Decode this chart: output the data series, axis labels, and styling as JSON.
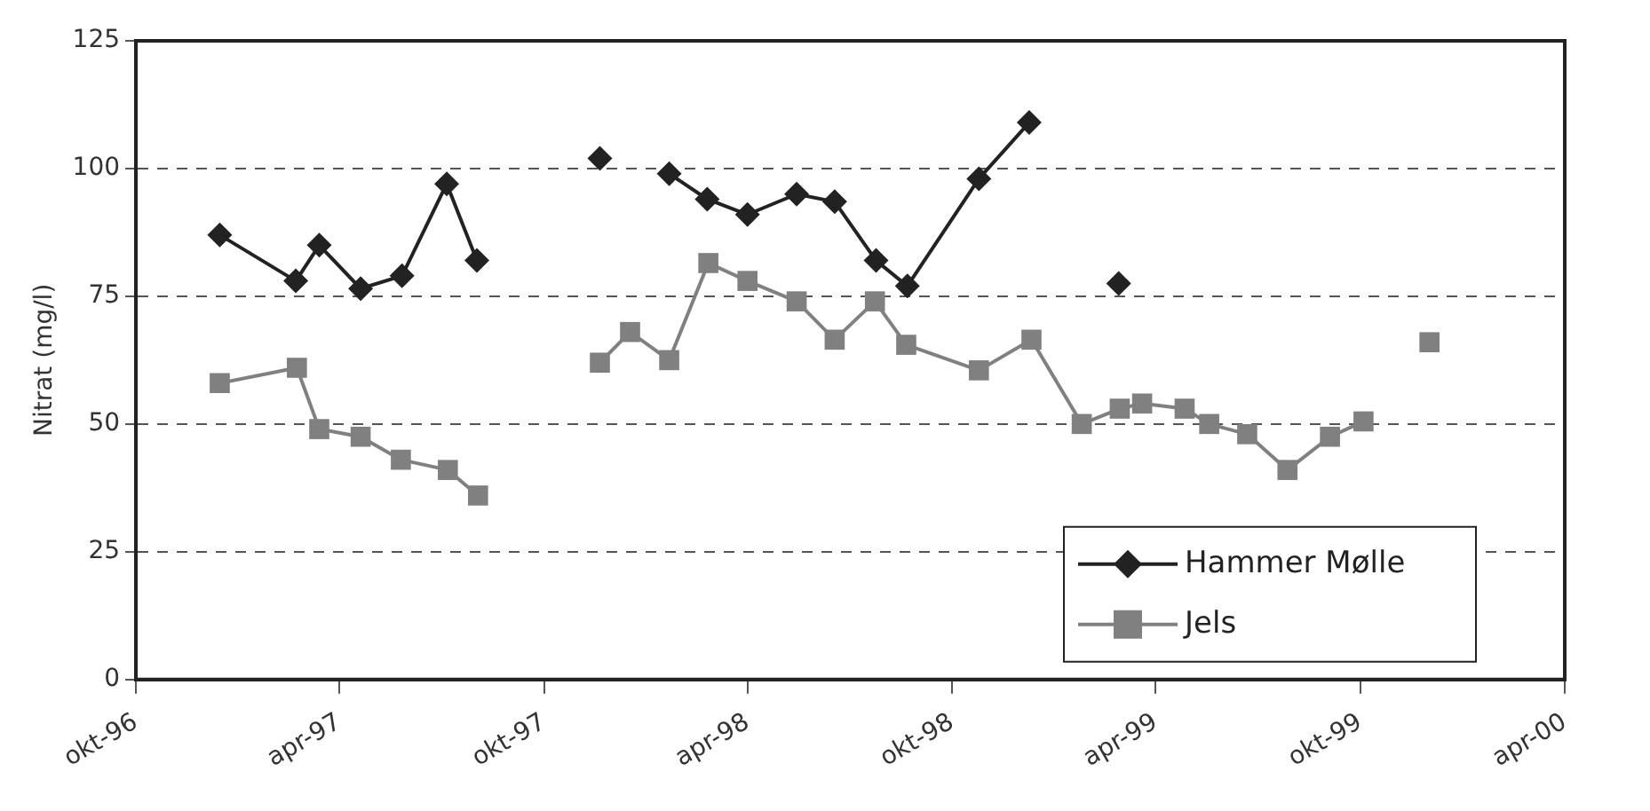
{
  "chart_data": {
    "type": "line",
    "ylabel": "Nitrat (mg/l)",
    "xlim": [
      "1996-10",
      "2000-04"
    ],
    "xticks": [
      {
        "value": "1996-10",
        "label": "okt-96"
      },
      {
        "value": "1997-04",
        "label": "apr-97"
      },
      {
        "value": "1997-10",
        "label": "okt-97"
      },
      {
        "value": "1998-04",
        "label": "apr-98"
      },
      {
        "value": "1998-10",
        "label": "okt-98"
      },
      {
        "value": "1999-04",
        "label": "apr-99"
      },
      {
        "value": "1999-10",
        "label": "okt-99"
      },
      {
        "value": "2000-04",
        "label": "apr-00"
      }
    ],
    "ylim": [
      0,
      125
    ],
    "yticks": [
      0,
      25,
      50,
      75,
      100,
      125
    ],
    "grid": "y",
    "legend": "bottom right",
    "series": [
      {
        "name": "Hammer Mølle",
        "color": "#222222",
        "marker": "diamond",
        "x": [
          "1996-12-15",
          "1997-02-21",
          "1997-03-14",
          "1997-04-20",
          "1997-05-27",
          "1997-07-06",
          "1997-08-02",
          "1997-10-01",
          "1997-11-20",
          "1997-12-20",
          "1998-01-21",
          "1998-02-24",
          "1998-04-01",
          "1998-05-15",
          "1998-06-18",
          "1998-07-25",
          "1998-08-22",
          "1998-10-25",
          "1998-12-09",
          "1999-01-15",
          "1999-02-27"
        ],
        "values": [
          87,
          78,
          85,
          76.5,
          79,
          97,
          82,
          null,
          102,
          null,
          99,
          94,
          91,
          95,
          93.5,
          82,
          77,
          98,
          109,
          null,
          77.5
        ]
      },
      {
        "name": "Jels",
        "color": "#808080",
        "marker": "square",
        "x": [
          "1996-12-15",
          "1997-02-22",
          "1997-03-14",
          "1997-04-20",
          "1997-05-26",
          "1997-07-07",
          "1997-08-03",
          "1997-10-01",
          "1997-11-20",
          "1997-12-17",
          "1998-01-21",
          "1998-02-25",
          "1998-04-01",
          "1998-05-15",
          "1998-06-18",
          "1998-07-24",
          "1998-08-21",
          "1998-10-25",
          "1998-12-11",
          "1999-01-25",
          "1999-02-28",
          "1999-03-20",
          "1999-04-27",
          "1999-05-19",
          "1999-06-22",
          "1999-07-28",
          "1999-09-04",
          "1999-10-04",
          "1999-11-01",
          "1999-12-02"
        ],
        "values": [
          58,
          61,
          49,
          47.5,
          43,
          41,
          36,
          null,
          62,
          68,
          62.5,
          81.5,
          78,
          74,
          66.5,
          74,
          65.5,
          60.5,
          66.5,
          50,
          53,
          54,
          53,
          50,
          48,
          41,
          47.5,
          50.5,
          null,
          66
        ]
      }
    ]
  }
}
